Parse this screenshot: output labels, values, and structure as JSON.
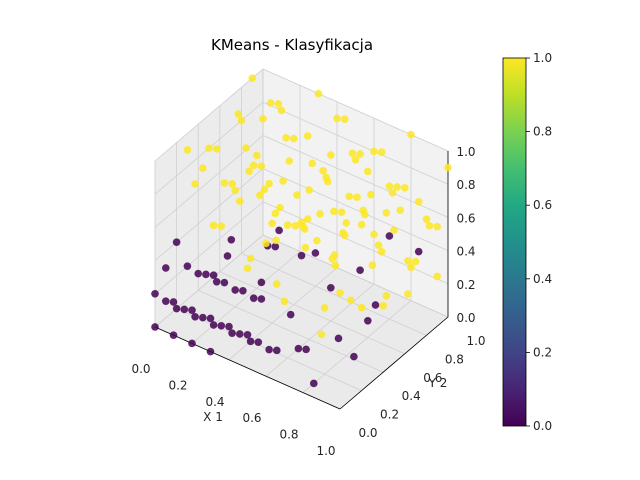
{
  "chart_data": {
    "type": "scatter",
    "projection": "3d",
    "title": "KMeans - Klasyfikacja",
    "xlabel": "X 1",
    "ylabel": "Y 2",
    "zlabel": "",
    "xlim": [
      0.0,
      1.0
    ],
    "ylim": [
      0.0,
      1.0
    ],
    "zlim": [
      0.0,
      1.0
    ],
    "x_ticks": [
      "0.0",
      "0.2",
      "0.4",
      "0.6",
      "0.8",
      "1.0"
    ],
    "y_ticks": [
      "0.0",
      "0.2",
      "0.4",
      "0.6",
      "0.8",
      "1.0"
    ],
    "z_ticks": [
      "0.0",
      "0.2",
      "0.4",
      "0.6",
      "0.8",
      "1.0"
    ],
    "grid": true,
    "colormap": "viridis",
    "colorbar": {
      "min": 0.0,
      "max": 1.0,
      "ticks": [
        "0.0",
        "0.2",
        "0.4",
        "0.6",
        "0.8",
        "1.0"
      ]
    },
    "colors": {
      "cluster_0": "#440154",
      "cluster_1": "#fde725"
    },
    "series": [
      {
        "cluster": 0,
        "points": [
          [
            0.0,
            0.0,
            0.2
          ],
          [
            0.1,
            0.0,
            0.2
          ],
          [
            0.2,
            0.0,
            0.2
          ],
          [
            0.3,
            0.0,
            0.2
          ],
          [
            0.4,
            0.0,
            0.2
          ],
          [
            0.5,
            0.0,
            0.2
          ],
          [
            0.0,
            0.1,
            0.1
          ],
          [
            0.1,
            0.1,
            0.1
          ],
          [
            0.2,
            0.1,
            0.1
          ],
          [
            0.3,
            0.1,
            0.1
          ],
          [
            0.4,
            0.1,
            0.1
          ],
          [
            0.5,
            0.1,
            0.1
          ],
          [
            0.0,
            0.2,
            0.0
          ],
          [
            0.1,
            0.2,
            0.0
          ],
          [
            0.2,
            0.2,
            0.0
          ],
          [
            0.3,
            0.2,
            0.0
          ],
          [
            0.4,
            0.2,
            0.0
          ],
          [
            0.5,
            0.2,
            0.0
          ],
          [
            0.0,
            0.3,
            0.2
          ],
          [
            0.1,
            0.3,
            0.2
          ],
          [
            0.2,
            0.3,
            0.2
          ],
          [
            0.3,
            0.3,
            0.2
          ],
          [
            0.4,
            0.3,
            0.2
          ],
          [
            0.0,
            0.4,
            0.1
          ],
          [
            0.1,
            0.4,
            0.1
          ],
          [
            0.2,
            0.4,
            0.1
          ],
          [
            0.3,
            0.4,
            0.1
          ],
          [
            0.0,
            0.0,
            0.0
          ],
          [
            0.1,
            0.0,
            0.0
          ],
          [
            0.2,
            0.0,
            0.0
          ],
          [
            0.3,
            0.0,
            0.0
          ],
          [
            0.0,
            0.1,
            0.3
          ],
          [
            0.2,
            0.2,
            0.3
          ],
          [
            0.4,
            0.3,
            0.3
          ],
          [
            0.1,
            0.5,
            0.2
          ],
          [
            0.0,
            0.2,
            0.4
          ],
          [
            0.6,
            0.1,
            0.1
          ],
          [
            0.7,
            0.2,
            0.1
          ],
          [
            0.6,
            0.3,
            0.0
          ],
          [
            0.5,
            0.4,
            0.1
          ],
          [
            0.8,
            0.1,
            0.0
          ],
          [
            0.9,
            0.3,
            0.1
          ],
          [
            0.7,
            0.5,
            0.0
          ],
          [
            0.6,
            0.6,
            0.2
          ],
          [
            0.8,
            0.6,
            0.1
          ],
          [
            0.9,
            0.5,
            0.3
          ],
          [
            0.5,
            0.5,
            0.4
          ],
          [
            0.3,
            0.6,
            0.3
          ],
          [
            0.2,
            0.7,
            0.2
          ],
          [
            0.4,
            0.8,
            0.2
          ],
          [
            0.7,
            0.7,
            0.3
          ],
          [
            0.9,
            0.9,
            0.4
          ],
          [
            0.8,
            0.8,
            0.5
          ],
          [
            0.15,
            0.45,
            0.35
          ],
          [
            0.35,
            0.55,
            0.45
          ]
        ]
      },
      {
        "cluster": 1,
        "points": [
          [
            0.1,
            0.9,
            0.9
          ],
          [
            0.2,
            0.8,
            1.0
          ],
          [
            0.3,
            0.9,
            0.8
          ],
          [
            0.4,
            1.0,
            0.9
          ],
          [
            0.5,
            0.9,
            1.0
          ],
          [
            0.6,
            1.0,
            0.8
          ],
          [
            0.7,
            0.9,
            0.9
          ],
          [
            0.8,
            1.0,
            1.0
          ],
          [
            0.9,
            0.9,
            0.7
          ],
          [
            1.0,
            1.0,
            0.9
          ],
          [
            0.2,
            0.6,
            0.8
          ],
          [
            0.3,
            0.7,
            0.9
          ],
          [
            0.4,
            0.6,
            1.0
          ],
          [
            0.5,
            0.7,
            0.8
          ],
          [
            0.6,
            0.8,
            0.9
          ],
          [
            0.7,
            0.7,
            1.0
          ],
          [
            0.8,
            0.8,
            0.8
          ],
          [
            0.9,
            0.7,
            0.9
          ],
          [
            1.0,
            0.8,
            0.7
          ],
          [
            0.1,
            0.7,
            0.6
          ],
          [
            0.2,
            0.9,
            0.6
          ],
          [
            0.3,
            0.8,
            0.5
          ],
          [
            0.4,
            0.9,
            0.6
          ],
          [
            0.5,
            1.0,
            0.7
          ],
          [
            0.6,
            0.9,
            0.5
          ],
          [
            0.7,
            1.0,
            0.6
          ],
          [
            0.8,
            0.9,
            0.6
          ],
          [
            0.9,
            1.0,
            0.5
          ],
          [
            1.0,
            0.9,
            0.6
          ],
          [
            0.5,
            0.8,
            0.5
          ],
          [
            0.6,
            0.7,
            0.6
          ],
          [
            0.7,
            0.8,
            0.7
          ],
          [
            0.8,
            0.7,
            0.5
          ],
          [
            0.9,
            0.8,
            0.4
          ],
          [
            1.0,
            0.7,
            0.5
          ],
          [
            0.4,
            0.7,
            0.4
          ],
          [
            0.3,
            0.5,
            0.7
          ],
          [
            0.4,
            0.5,
            0.8
          ],
          [
            0.5,
            0.6,
            0.9
          ],
          [
            0.6,
            0.5,
            0.7
          ],
          [
            0.7,
            0.6,
            0.8
          ],
          [
            0.8,
            0.5,
            0.9
          ],
          [
            0.9,
            0.6,
            0.8
          ],
          [
            1.0,
            0.6,
            1.0
          ],
          [
            0.2,
            0.5,
            0.9
          ],
          [
            0.1,
            0.6,
            1.0
          ],
          [
            0.0,
            0.8,
            0.8
          ],
          [
            0.0,
            0.9,
            1.0
          ],
          [
            0.0,
            1.0,
            0.7
          ],
          [
            0.1,
            1.0,
            0.8
          ],
          [
            0.3,
            1.0,
            1.0
          ],
          [
            0.5,
            0.5,
            0.6
          ],
          [
            0.6,
            0.6,
            1.0
          ],
          [
            0.8,
            0.6,
            1.0
          ],
          [
            0.9,
            0.4,
            0.9
          ],
          [
            1.0,
            0.5,
            0.8
          ],
          [
            0.7,
            0.4,
            1.0
          ],
          [
            0.2,
            0.4,
            0.7
          ],
          [
            0.3,
            0.4,
            0.9
          ],
          [
            0.4,
            0.4,
            0.6
          ],
          [
            0.5,
            0.3,
            0.8
          ],
          [
            0.6,
            0.4,
            0.9
          ],
          [
            0.7,
            0.3,
            0.7
          ],
          [
            0.8,
            0.4,
            0.8
          ],
          [
            0.9,
            0.2,
            0.9
          ],
          [
            1.0,
            0.3,
            0.7
          ],
          [
            1.0,
            0.2,
            1.0
          ],
          [
            0.8,
            0.3,
            0.6
          ],
          [
            0.6,
            0.2,
            0.8
          ],
          [
            0.4,
            0.3,
            1.0
          ],
          [
            0.2,
            0.3,
            0.8
          ],
          [
            0.1,
            0.4,
            0.9
          ],
          [
            0.9,
            0.1,
            0.8
          ],
          [
            1.0,
            0.1,
            0.6
          ],
          [
            0.7,
            0.1,
            0.9
          ],
          [
            0.5,
            0.2,
            1.0
          ],
          [
            0.3,
            0.2,
            0.9
          ],
          [
            1.0,
            0.0,
            0.7
          ],
          [
            0.8,
            0.0,
            1.0
          ],
          [
            0.6,
            0.0,
            0.8
          ],
          [
            0.4,
            0.1,
            0.9
          ],
          [
            0.2,
            0.1,
            1.0
          ],
          [
            0.5,
            0.9,
            0.3
          ],
          [
            0.7,
            0.9,
            0.3
          ],
          [
            0.9,
            0.6,
            0.3
          ],
          [
            1.0,
            0.4,
            0.4
          ],
          [
            0.6,
            1.0,
            0.3
          ],
          [
            0.8,
            1.0,
            0.2
          ],
          [
            0.3,
            0.9,
            0.3
          ],
          [
            0.9,
            0.8,
            0.2
          ],
          [
            1.0,
            0.9,
            0.3
          ],
          [
            0.6,
            0.1,
            0.5
          ],
          [
            0.8,
            0.2,
            0.4
          ],
          [
            1.0,
            0.2,
            0.5
          ],
          [
            0.7,
            0.0,
            0.5
          ],
          [
            0.9,
            0.0,
            0.4
          ],
          [
            0.5,
            0.0,
            0.6
          ],
          [
            0.3,
            0.1,
            0.7
          ],
          [
            0.2,
            0.2,
            0.6
          ],
          [
            0.4,
            0.2,
            0.5
          ],
          [
            0.1,
            0.2,
            0.8
          ],
          [
            0.0,
            0.3,
            0.9
          ],
          [
            0.0,
            0.5,
            0.8
          ],
          [
            0.1,
            0.8,
            0.4
          ],
          [
            0.3,
            0.6,
            0.5
          ],
          [
            0.45,
            0.35,
            0.55
          ],
          [
            0.55,
            0.45,
            0.5
          ],
          [
            0.65,
            0.55,
            0.45
          ]
        ]
      }
    ]
  }
}
